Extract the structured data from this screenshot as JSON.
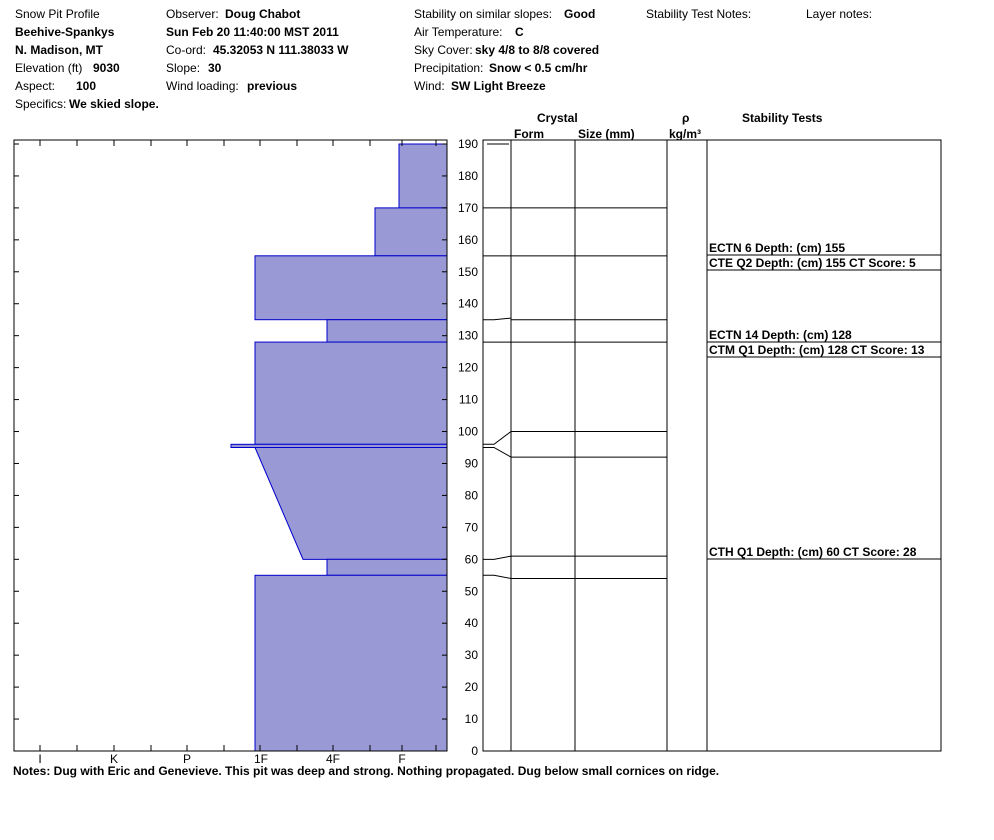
{
  "header": {
    "title": "Snow Pit Profile",
    "location": "Beehive-Spankys",
    "region": "N. Madison, MT",
    "elevation_label": "Elevation (ft)",
    "elevation_value": "9030",
    "aspect_label": "Aspect:",
    "aspect_value": "100",
    "specifics_label": "Specifics:",
    "specifics_value": "We skied slope.",
    "observer_label": "Observer:",
    "observer_value": "Doug Chabot",
    "datetime": "Sun Feb 20 11:40:00 MST 2011",
    "coord_label": "Co-ord:",
    "coord_value": "45.32053 N 111.38033 W",
    "slope_label": "Slope:",
    "slope_value": "30",
    "wind_loading_label": "Wind loading:",
    "wind_loading_value": "previous",
    "stability_label": "Stability on similar slopes:",
    "stability_value": "Good",
    "air_temp_label": "Air Temperature:",
    "air_temp_value": "C",
    "sky_label": "Sky Cover:",
    "sky_value": "sky 4/8 to 8/8 covered",
    "precip_label": "Precipitation:",
    "precip_value": "Snow < 0.5 cm/hr",
    "wind_label": "Wind:",
    "wind_value": "SW Light Breeze",
    "stability_test_notes_label": "Stability Test Notes:",
    "layer_notes_label": "Layer notes:"
  },
  "columns": {
    "crystal": "Crystal",
    "form": "Form",
    "size": "Size (mm)",
    "rho": "ρ",
    "density_unit": "kg/m³",
    "stability_tests": "Stability Tests"
  },
  "notes": "Notes:  Dug with Eric and Genevieve.  This pit was deep and strong.  Nothing propagated.  Dug below small cornices on ridge.",
  "chart_data": {
    "type": "area",
    "title": "",
    "xlabel": "",
    "ylabel": "",
    "ylim": [
      0,
      190
    ],
    "y_ticks": [
      0,
      10,
      20,
      30,
      40,
      50,
      60,
      70,
      80,
      90,
      100,
      110,
      120,
      130,
      140,
      150,
      160,
      170,
      180,
      190
    ],
    "hardness_ticks": [
      "I",
      "K",
      "P",
      "1F",
      "4F",
      "F"
    ],
    "hardness_ticks_note": "hardness axis shown right-to-left: F at right near 0",
    "hardness_layers": [
      {
        "top": 190,
        "bottom": 170,
        "hardness": "F"
      },
      {
        "top": 170,
        "bottom": 155,
        "hardness": "F+"
      },
      {
        "top": 155,
        "bottom": 135,
        "hardness": "1F"
      },
      {
        "top": 135,
        "bottom": 128,
        "hardness": "4F"
      },
      {
        "top": 128,
        "bottom": 96,
        "hardness": "1F"
      },
      {
        "top": 96,
        "bottom": 95,
        "hardness": "1F+"
      },
      {
        "top": 95,
        "bottom": 60,
        "hardness": "1F to 4F-",
        "gradient": true
      },
      {
        "top": 60,
        "bottom": 55,
        "hardness": "4F"
      },
      {
        "top": 55,
        "bottom": 0,
        "hardness": "1F"
      }
    ],
    "layer_boundaries": [
      170,
      155,
      135,
      128,
      100,
      92,
      61,
      54
    ],
    "stability_tests": [
      {
        "label": "ECTN 6   Depth: (cm) 155",
        "depth": 155
      },
      {
        "label": "CTE Q2 Depth: (cm) 155 CT Score: 5",
        "depth": 155
      },
      {
        "label": "ECTN 14   Depth: (cm) 128",
        "depth": 128
      },
      {
        "label": "CTM Q1 Depth: (cm) 128 CT Score: 13",
        "depth": 128
      },
      {
        "label": "CTH Q1 Depth: (cm) 60 CT Score: 28",
        "depth": 60
      }
    ],
    "colors": {
      "fill": "#9999d6",
      "stroke": "#0000cc",
      "line": "#000000"
    }
  }
}
